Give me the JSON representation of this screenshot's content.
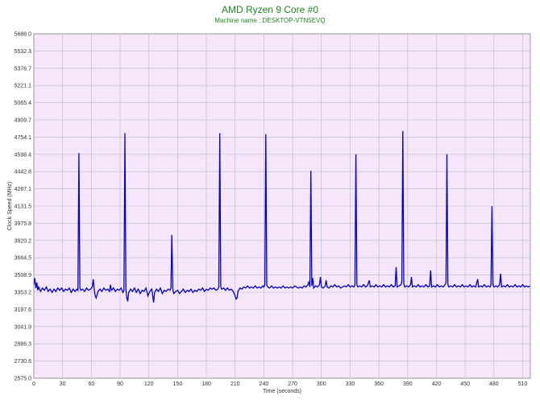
{
  "chart_data": {
    "type": "line",
    "title": "AMD Ryzen 9 Core #0",
    "subtitle": "Machine name : DESKTOP-VTN5EVQ",
    "xlabel": "Time (seconds)",
    "ylabel": "Clock Speed (MHz)",
    "xlim": [
      0,
      518
    ],
    "ylim": [
      2575.0,
      5688.0
    ],
    "x_ticks": [
      0,
      30,
      60,
      90,
      120,
      150,
      180,
      210,
      240,
      270,
      300,
      330,
      360,
      390,
      420,
      450,
      480,
      510
    ],
    "y_ticks": [
      "2575.0",
      "2730.6",
      "2886.3",
      "3041.9",
      "3197.6",
      "3353.2",
      "3508.9",
      "3664.5",
      "3820.2",
      "3975.8",
      "4131.5",
      "4287.1",
      "4442.8",
      "4598.4",
      "4754.1",
      "4909.7",
      "5065.4",
      "5221.1",
      "5376.7",
      "5532.3",
      "5688.0"
    ],
    "grid": true,
    "background_color": "#f5e6fb",
    "line_color": "#0000c8",
    "grid_color": "#bbbbbb",
    "series": [
      {
        "values": [
          [
            0,
            3420
          ],
          [
            1,
            3480
          ],
          [
            2,
            3390
          ],
          [
            3,
            3440
          ],
          [
            4,
            3370
          ],
          [
            5,
            3400
          ],
          [
            7,
            3360
          ],
          [
            9,
            3390
          ],
          [
            11,
            3370
          ],
          [
            13,
            3400
          ],
          [
            15,
            3360
          ],
          [
            17,
            3380
          ],
          [
            19,
            3350
          ],
          [
            21,
            3380
          ],
          [
            23,
            3360
          ],
          [
            25,
            3390
          ],
          [
            27,
            3370
          ],
          [
            29,
            3390
          ],
          [
            31,
            3360
          ],
          [
            33,
            3380
          ],
          [
            35,
            3370
          ],
          [
            37,
            3390
          ],
          [
            39,
            3350
          ],
          [
            41,
            3380
          ],
          [
            43,
            3360
          ],
          [
            45,
            3380
          ],
          [
            46,
            3370
          ],
          [
            47,
            4610
          ],
          [
            48,
            3390
          ],
          [
            49,
            3370
          ],
          [
            51,
            3380
          ],
          [
            53,
            3360
          ],
          [
            55,
            3390
          ],
          [
            57,
            3370
          ],
          [
            59,
            3380
          ],
          [
            61,
            3400
          ],
          [
            62,
            3470
          ],
          [
            63,
            3380
          ],
          [
            64,
            3320
          ],
          [
            65,
            3300
          ],
          [
            67,
            3360
          ],
          [
            69,
            3380
          ],
          [
            71,
            3360
          ],
          [
            73,
            3390
          ],
          [
            75,
            3370
          ],
          [
            77,
            3380
          ],
          [
            79,
            3360
          ],
          [
            80,
            3420
          ],
          [
            81,
            3370
          ],
          [
            83,
            3390
          ],
          [
            85,
            3360
          ],
          [
            87,
            3380
          ],
          [
            89,
            3370
          ],
          [
            91,
            3390
          ],
          [
            93,
            3350
          ],
          [
            94,
            3370
          ],
          [
            95,
            4790
          ],
          [
            96,
            3380
          ],
          [
            97,
            3300
          ],
          [
            98,
            3270
          ],
          [
            99,
            3350
          ],
          [
            101,
            3380
          ],
          [
            103,
            3360
          ],
          [
            105,
            3390
          ],
          [
            107,
            3350
          ],
          [
            109,
            3380
          ],
          [
            111,
            3340
          ],
          [
            113,
            3370
          ],
          [
            115,
            3360
          ],
          [
            117,
            3390
          ],
          [
            119,
            3320
          ],
          [
            121,
            3360
          ],
          [
            123,
            3380
          ],
          [
            124,
            3320
          ],
          [
            125,
            3260
          ],
          [
            126,
            3350
          ],
          [
            128,
            3380
          ],
          [
            130,
            3360
          ],
          [
            132,
            3390
          ],
          [
            134,
            3340
          ],
          [
            136,
            3370
          ],
          [
            138,
            3360
          ],
          [
            140,
            3380
          ],
          [
            142,
            3370
          ],
          [
            143,
            3390
          ],
          [
            144,
            3870
          ],
          [
            145,
            3380
          ],
          [
            146,
            3340
          ],
          [
            148,
            3360
          ],
          [
            150,
            3370
          ],
          [
            152,
            3340
          ],
          [
            154,
            3360
          ],
          [
            156,
            3380
          ],
          [
            158,
            3350
          ],
          [
            160,
            3370
          ],
          [
            162,
            3360
          ],
          [
            164,
            3380
          ],
          [
            166,
            3350
          ],
          [
            168,
            3370
          ],
          [
            170,
            3360
          ],
          [
            172,
            3380
          ],
          [
            174,
            3370
          ],
          [
            176,
            3390
          ],
          [
            178,
            3360
          ],
          [
            180,
            3380
          ],
          [
            182,
            3370
          ],
          [
            184,
            3390
          ],
          [
            186,
            3380
          ],
          [
            188,
            3390
          ],
          [
            190,
            3370
          ],
          [
            192,
            3380
          ],
          [
            193,
            3400
          ],
          [
            194,
            4790
          ],
          [
            195,
            3400
          ],
          [
            196,
            3380
          ],
          [
            198,
            3390
          ],
          [
            200,
            3370
          ],
          [
            202,
            3390
          ],
          [
            204,
            3370
          ],
          [
            206,
            3380
          ],
          [
            208,
            3360
          ],
          [
            210,
            3320
          ],
          [
            211,
            3290
          ],
          [
            212,
            3300
          ],
          [
            213,
            3360
          ],
          [
            215,
            3390
          ],
          [
            217,
            3380
          ],
          [
            219,
            3400
          ],
          [
            221,
            3390
          ],
          [
            223,
            3410
          ],
          [
            225,
            3390
          ],
          [
            227,
            3400
          ],
          [
            229,
            3390
          ],
          [
            231,
            3410
          ],
          [
            233,
            3390
          ],
          [
            235,
            3400
          ],
          [
            237,
            3390
          ],
          [
            239,
            3410
          ],
          [
            240,
            3400
          ],
          [
            241,
            3420
          ],
          [
            242,
            4780
          ],
          [
            243,
            3420
          ],
          [
            244,
            3400
          ],
          [
            246,
            3390
          ],
          [
            248,
            3410
          ],
          [
            250,
            3390
          ],
          [
            252,
            3400
          ],
          [
            254,
            3390
          ],
          [
            256,
            3400
          ],
          [
            258,
            3390
          ],
          [
            260,
            3410
          ],
          [
            262,
            3390
          ],
          [
            264,
            3400
          ],
          [
            266,
            3390
          ],
          [
            268,
            3400
          ],
          [
            270,
            3390
          ],
          [
            272,
            3410
          ],
          [
            274,
            3400
          ],
          [
            276,
            3390
          ],
          [
            278,
            3400
          ],
          [
            280,
            3390
          ],
          [
            282,
            3410
          ],
          [
            284,
            3400
          ],
          [
            286,
            3420
          ],
          [
            287,
            3450
          ],
          [
            288,
            3400
          ],
          [
            289,
            4450
          ],
          [
            290,
            3410
          ],
          [
            291,
            3480
          ],
          [
            292,
            3390
          ],
          [
            294,
            3410
          ],
          [
            296,
            3400
          ],
          [
            298,
            3420
          ],
          [
            299,
            3490
          ],
          [
            300,
            3400
          ],
          [
            302,
            3390
          ],
          [
            304,
            3410
          ],
          [
            305,
            3460
          ],
          [
            306,
            3400
          ],
          [
            308,
            3390
          ],
          [
            310,
            3410
          ],
          [
            312,
            3400
          ],
          [
            314,
            3420
          ],
          [
            316,
            3400
          ],
          [
            318,
            3410
          ],
          [
            320,
            3390
          ],
          [
            322,
            3400
          ],
          [
            324,
            3410
          ],
          [
            326,
            3400
          ],
          [
            328,
            3420
          ],
          [
            330,
            3400
          ],
          [
            332,
            3410
          ],
          [
            334,
            3400
          ],
          [
            335,
            3420
          ],
          [
            336,
            4600
          ],
          [
            337,
            3420
          ],
          [
            338,
            3400
          ],
          [
            340,
            3410
          ],
          [
            342,
            3400
          ],
          [
            344,
            3420
          ],
          [
            346,
            3400
          ],
          [
            348,
            3410
          ],
          [
            350,
            3460
          ],
          [
            351,
            3400
          ],
          [
            353,
            3410
          ],
          [
            355,
            3400
          ],
          [
            357,
            3420
          ],
          [
            359,
            3400
          ],
          [
            361,
            3410
          ],
          [
            363,
            3400
          ],
          [
            365,
            3420
          ],
          [
            367,
            3400
          ],
          [
            369,
            3410
          ],
          [
            371,
            3400
          ],
          [
            373,
            3420
          ],
          [
            375,
            3400
          ],
          [
            377,
            3410
          ],
          [
            378,
            3580
          ],
          [
            379,
            3400
          ],
          [
            381,
            3410
          ],
          [
            383,
            3420
          ],
          [
            384,
            3450
          ],
          [
            385,
            4810
          ],
          [
            386,
            3430
          ],
          [
            387,
            3400
          ],
          [
            389,
            3410
          ],
          [
            391,
            3400
          ],
          [
            393,
            3420
          ],
          [
            394,
            3490
          ],
          [
            395,
            3400
          ],
          [
            397,
            3410
          ],
          [
            399,
            3400
          ],
          [
            401,
            3420
          ],
          [
            403,
            3400
          ],
          [
            405,
            3410
          ],
          [
            407,
            3400
          ],
          [
            409,
            3420
          ],
          [
            411,
            3400
          ],
          [
            413,
            3410
          ],
          [
            414,
            3550
          ],
          [
            415,
            3400
          ],
          [
            417,
            3410
          ],
          [
            419,
            3400
          ],
          [
            421,
            3420
          ],
          [
            423,
            3400
          ],
          [
            425,
            3410
          ],
          [
            427,
            3400
          ],
          [
            429,
            3420
          ],
          [
            430,
            3440
          ],
          [
            431,
            4600
          ],
          [
            432,
            3420
          ],
          [
            433,
            3400
          ],
          [
            435,
            3410
          ],
          [
            437,
            3400
          ],
          [
            439,
            3420
          ],
          [
            441,
            3400
          ],
          [
            443,
            3410
          ],
          [
            445,
            3400
          ],
          [
            447,
            3420
          ],
          [
            449,
            3400
          ],
          [
            451,
            3410
          ],
          [
            453,
            3400
          ],
          [
            455,
            3420
          ],
          [
            457,
            3400
          ],
          [
            459,
            3410
          ],
          [
            461,
            3400
          ],
          [
            463,
            3470
          ],
          [
            464,
            3400
          ],
          [
            466,
            3410
          ],
          [
            468,
            3400
          ],
          [
            470,
            3420
          ],
          [
            472,
            3400
          ],
          [
            474,
            3410
          ],
          [
            476,
            3400
          ],
          [
            477,
            3420
          ],
          [
            478,
            4130
          ],
          [
            479,
            3420
          ],
          [
            480,
            3400
          ],
          [
            482,
            3410
          ],
          [
            484,
            3400
          ],
          [
            486,
            3420
          ],
          [
            487,
            3520
          ],
          [
            488,
            3400
          ],
          [
            490,
            3410
          ],
          [
            492,
            3400
          ],
          [
            494,
            3420
          ],
          [
            496,
            3400
          ],
          [
            498,
            3410
          ],
          [
            500,
            3400
          ],
          [
            502,
            3420
          ],
          [
            504,
            3400
          ],
          [
            506,
            3410
          ],
          [
            508,
            3400
          ],
          [
            510,
            3420
          ],
          [
            512,
            3400
          ],
          [
            514,
            3410
          ],
          [
            516,
            3400
          ],
          [
            518,
            3410
          ]
        ]
      }
    ]
  }
}
